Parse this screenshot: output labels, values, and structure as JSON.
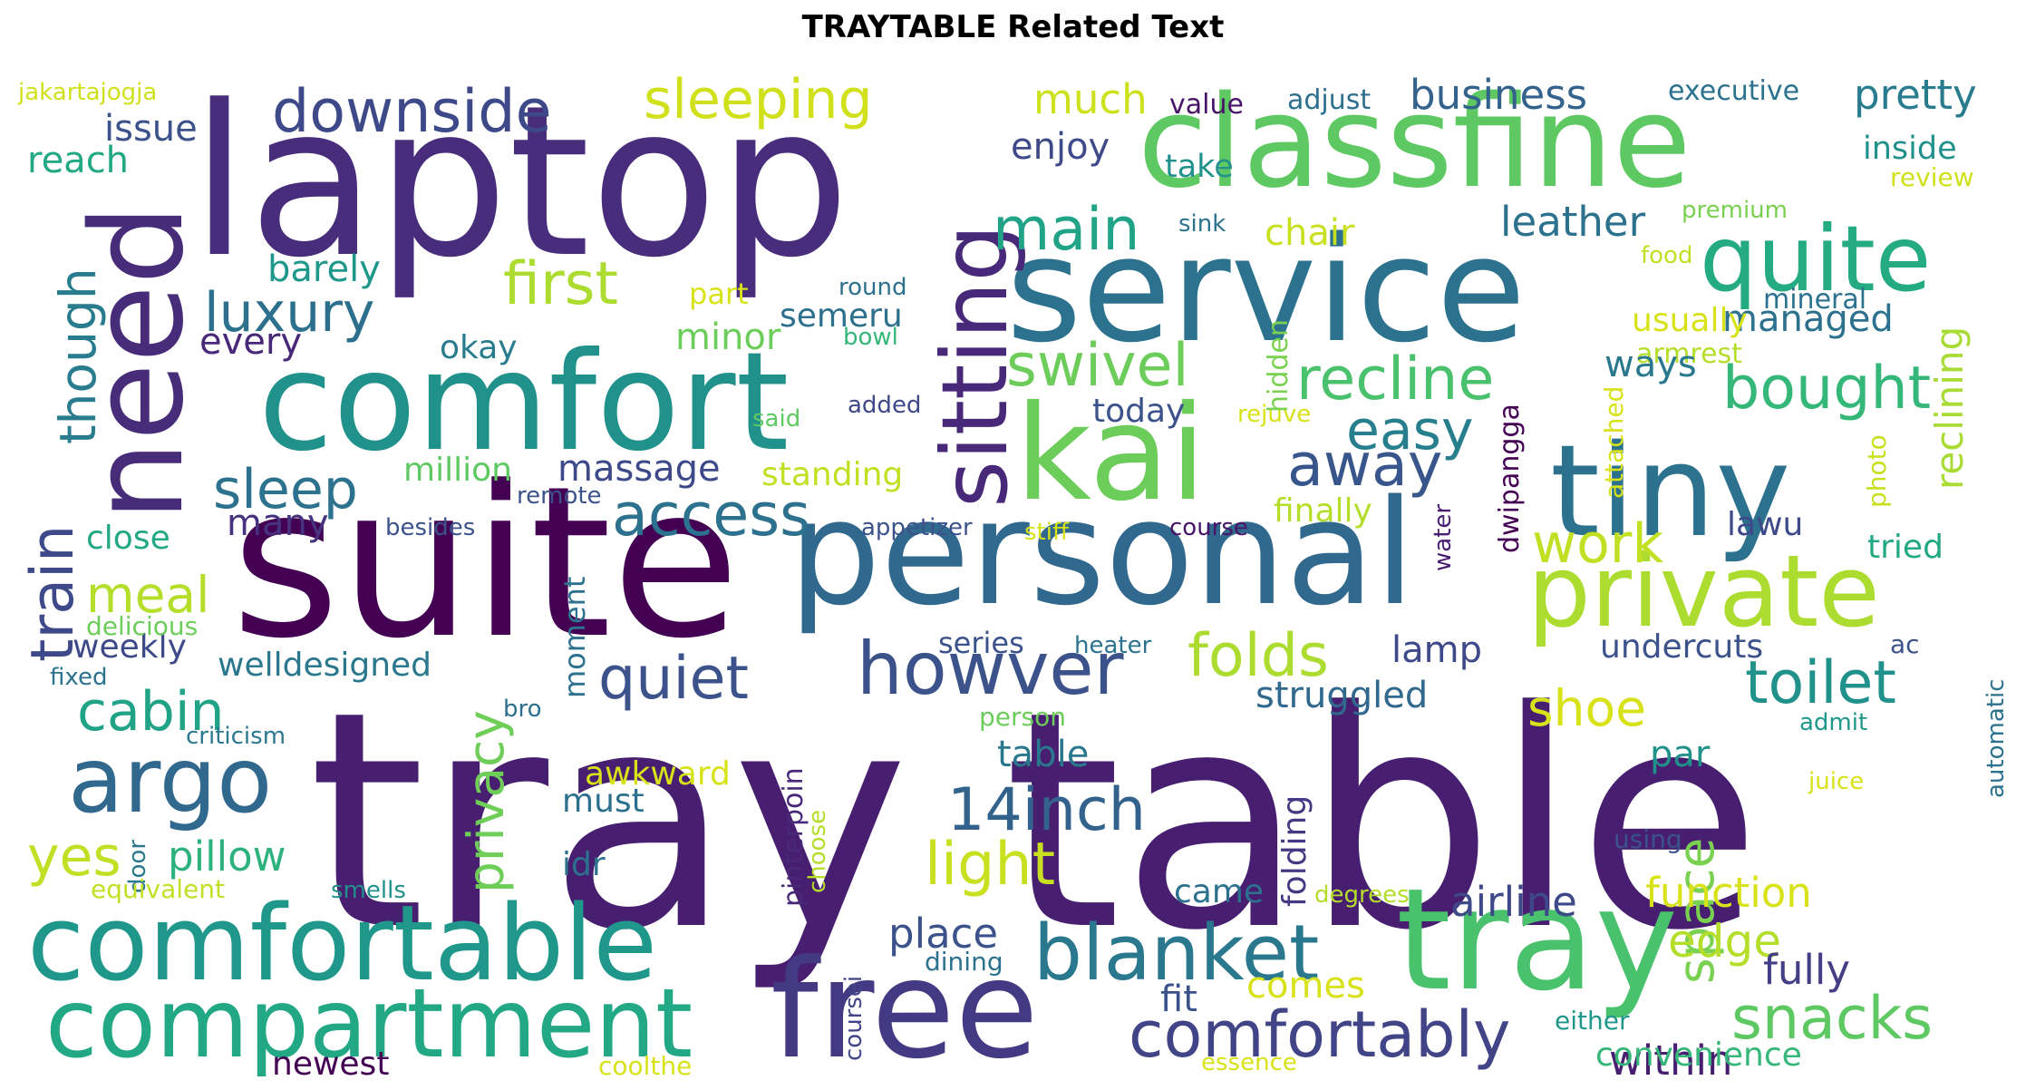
{
  "chart_data": {
    "type": "wordcloud",
    "title": "TRAYTABLE Related Text",
    "words": [
      {
        "text": "tray table",
        "color": "#481f70"
      },
      {
        "text": "suite",
        "color": "#440154"
      },
      {
        "text": "laptop",
        "color": "#472d7b"
      },
      {
        "text": "personal",
        "color": "#31688e"
      },
      {
        "text": "service",
        "color": "#2c728e"
      },
      {
        "text": "classfine",
        "color": "#5ec962"
      },
      {
        "text": "comfort",
        "color": "#21918c"
      },
      {
        "text": "tiny",
        "color": "#2c728e"
      },
      {
        "text": "kai",
        "color": "#6ccd5a"
      },
      {
        "text": "tray",
        "color": "#4ac16d"
      },
      {
        "text": "free",
        "color": "#443983"
      },
      {
        "text": "need",
        "color": "#472c7a"
      },
      {
        "text": "private",
        "color": "#addc30"
      },
      {
        "text": "comfortable",
        "color": "#1f988b"
      },
      {
        "text": "compartment",
        "color": "#22a884"
      },
      {
        "text": "quite",
        "color": "#25ab82"
      },
      {
        "text": "sitting",
        "color": "#482878"
      },
      {
        "text": "argo",
        "color": "#31688e"
      },
      {
        "text": "blanket",
        "color": "#2a788e"
      },
      {
        "text": "howver",
        "color": "#3b528b"
      },
      {
        "text": "comfortably",
        "color": "#414487"
      },
      {
        "text": "downside",
        "color": "#3e4989"
      },
      {
        "text": "sleeping",
        "color": "#d0e11c"
      },
      {
        "text": "luxury",
        "color": "#2d708e"
      },
      {
        "text": "quiet",
        "color": "#3b528b"
      },
      {
        "text": "14inch",
        "color": "#33638d"
      },
      {
        "text": "recline",
        "color": "#4ac16d"
      },
      {
        "text": "folds",
        "color": "#addc30"
      },
      {
        "text": "access",
        "color": "#2c728e"
      },
      {
        "text": "snacks",
        "color": "#5ec962"
      },
      {
        "text": "toilet",
        "color": "#21918c"
      },
      {
        "text": "light",
        "color": "#c8e020"
      },
      {
        "text": "bought",
        "color": "#35b779"
      },
      {
        "text": "main",
        "color": "#20a386"
      },
      {
        "text": "first",
        "color": "#addc30"
      },
      {
        "text": "swivel",
        "color": "#6ccd5a"
      },
      {
        "text": "away",
        "color": "#39568c"
      },
      {
        "text": "easy",
        "color": "#277f8e"
      },
      {
        "text": "work",
        "color": "#c2df23"
      },
      {
        "text": "train",
        "color": "#3e4989"
      },
      {
        "text": "though",
        "color": "#287c8e"
      },
      {
        "text": "sleep",
        "color": "#2c728e"
      },
      {
        "text": "cabin",
        "color": "#20a386"
      },
      {
        "text": "yes",
        "color": "#c2df23"
      },
      {
        "text": "space",
        "color": "#7ad151"
      },
      {
        "text": "privacy",
        "color": "#6ece58"
      },
      {
        "text": "meal",
        "color": "#b5de2b"
      },
      {
        "text": "pillow",
        "color": "#2db27d"
      },
      {
        "text": "shoe",
        "color": "#d8e219"
      },
      {
        "text": "edge",
        "color": "#b5de2b"
      },
      {
        "text": "place",
        "color": "#3b528b"
      },
      {
        "text": "airline",
        "color": "#3e4989"
      },
      {
        "text": "function",
        "color": "#d8e219"
      },
      {
        "text": "within",
        "color": "#481f70"
      },
      {
        "text": "convenience",
        "color": "#35b779"
      },
      {
        "text": "fully",
        "color": "#433e85"
      },
      {
        "text": "much",
        "color": "#cde11d"
      },
      {
        "text": "enjoy",
        "color": "#3e4989"
      },
      {
        "text": "business",
        "color": "#33638d"
      },
      {
        "text": "pretty",
        "color": "#287c8e"
      },
      {
        "text": "leather",
        "color": "#2c728e"
      },
      {
        "text": "managed",
        "color": "#2c728e"
      },
      {
        "text": "reclining",
        "color": "#a8db34"
      },
      {
        "text": "barely",
        "color": "#1f988b"
      },
      {
        "text": "every",
        "color": "#482878"
      },
      {
        "text": "issue",
        "color": "#3b528b"
      },
      {
        "text": "reach",
        "color": "#22a884"
      },
      {
        "text": "massage",
        "color": "#3e4989"
      },
      {
        "text": "minor",
        "color": "#6ccd5a"
      },
      {
        "text": "many",
        "color": "#46327e"
      },
      {
        "text": "standing",
        "color": "#c2df23"
      },
      {
        "text": "million",
        "color": "#5ec962"
      },
      {
        "text": "okay",
        "color": "#287c8e"
      },
      {
        "text": "chair",
        "color": "#c8e020"
      },
      {
        "text": "semeru",
        "color": "#2d708e"
      },
      {
        "text": "part",
        "color": "#d8e219"
      },
      {
        "text": "take",
        "color": "#21918c"
      },
      {
        "text": "value",
        "color": "#481467"
      },
      {
        "text": "adjust",
        "color": "#2d708e"
      },
      {
        "text": "executive",
        "color": "#2c728e"
      },
      {
        "text": "inside",
        "color": "#21918c"
      },
      {
        "text": "review",
        "color": "#d0e11c"
      },
      {
        "text": "premium",
        "color": "#7ad151"
      },
      {
        "text": "food",
        "color": "#c2df23"
      },
      {
        "text": "mineral",
        "color": "#2c728e"
      },
      {
        "text": "usually",
        "color": "#d8e219"
      },
      {
        "text": "armrest",
        "color": "#b5de2b"
      },
      {
        "text": "ways",
        "color": "#2a788e"
      },
      {
        "text": "lawu",
        "color": "#3e4989"
      },
      {
        "text": "tried",
        "color": "#22a884"
      },
      {
        "text": "photo",
        "color": "#c8e020"
      },
      {
        "text": "attached",
        "color": "#d8e219"
      },
      {
        "text": "rejuve",
        "color": "#d8e219"
      },
      {
        "text": "hidden",
        "color": "#7ad151"
      },
      {
        "text": "today",
        "color": "#3b528b"
      },
      {
        "text": "finally",
        "color": "#b5de2b"
      },
      {
        "text": "course",
        "color": "#481467"
      },
      {
        "text": "dwipangga",
        "color": "#440154"
      },
      {
        "text": "water",
        "color": "#481f70"
      },
      {
        "text": "undercuts",
        "color": "#3b528b"
      },
      {
        "text": "ac",
        "color": "#3b528b"
      },
      {
        "text": "par",
        "color": "#21918c"
      },
      {
        "text": "automatic",
        "color": "#2c728e"
      },
      {
        "text": "admit",
        "color": "#1f988b"
      },
      {
        "text": "juice",
        "color": "#d8e219"
      },
      {
        "text": "using",
        "color": "#3b528b"
      },
      {
        "text": "lamp",
        "color": "#3e4989"
      },
      {
        "text": "struggled",
        "color": "#31688e"
      },
      {
        "text": "table",
        "color": "#2a788e"
      },
      {
        "text": "came",
        "color": "#2c728e"
      },
      {
        "text": "folding",
        "color": "#443983"
      },
      {
        "text": "degrees",
        "color": "#b5de2b"
      },
      {
        "text": "comes",
        "color": "#d8e219"
      },
      {
        "text": "fit",
        "color": "#3b528b"
      },
      {
        "text": "dining",
        "color": "#2c728e"
      },
      {
        "text": "either",
        "color": "#1f988b"
      },
      {
        "text": "essence",
        "color": "#d8e219"
      },
      {
        "text": "coolthe",
        "color": "#d8e219"
      },
      {
        "text": "newest",
        "color": "#440154"
      },
      {
        "text": "coursei",
        "color": "#414487"
      },
      {
        "text": "choose",
        "color": "#b5de2b"
      },
      {
        "text": "pinterpoin",
        "color": "#482878"
      },
      {
        "text": "door",
        "color": "#2a788e"
      },
      {
        "text": "equivalent",
        "color": "#c2df23"
      },
      {
        "text": "smells",
        "color": "#21918c"
      },
      {
        "text": "idr",
        "color": "#2c728e"
      },
      {
        "text": "must",
        "color": "#2d708e"
      },
      {
        "text": "awkward",
        "color": "#d8e219"
      },
      {
        "text": "person",
        "color": "#6ccd5a"
      },
      {
        "text": "heater",
        "color": "#2c728e"
      },
      {
        "text": "series",
        "color": "#3b528b"
      },
      {
        "text": "moment",
        "color": "#2c728e"
      },
      {
        "text": "welldesigned",
        "color": "#2a788e"
      },
      {
        "text": "weekly",
        "color": "#3e4989"
      },
      {
        "text": "delicious",
        "color": "#6ccd5a"
      },
      {
        "text": "fixed",
        "color": "#2c728e"
      },
      {
        "text": "close",
        "color": "#22a884"
      },
      {
        "text": "besides",
        "color": "#3b528b"
      },
      {
        "text": "remote",
        "color": "#3b528b"
      },
      {
        "text": "appetizer",
        "color": "#3b528b"
      },
      {
        "text": "stiff",
        "color": "#d8e219"
      },
      {
        "text": "criticism",
        "color": "#2a788e"
      },
      {
        "text": "bro",
        "color": "#2d708e"
      },
      {
        "text": "said",
        "color": "#5ec962"
      },
      {
        "text": "added",
        "color": "#3e4989"
      },
      {
        "text": "bowl",
        "color": "#35b779"
      },
      {
        "text": "round",
        "color": "#2d708e"
      },
      {
        "text": "sink",
        "color": "#2c728e"
      },
      {
        "text": "jakartajogja",
        "color": "#d0e11c"
      }
    ]
  }
}
